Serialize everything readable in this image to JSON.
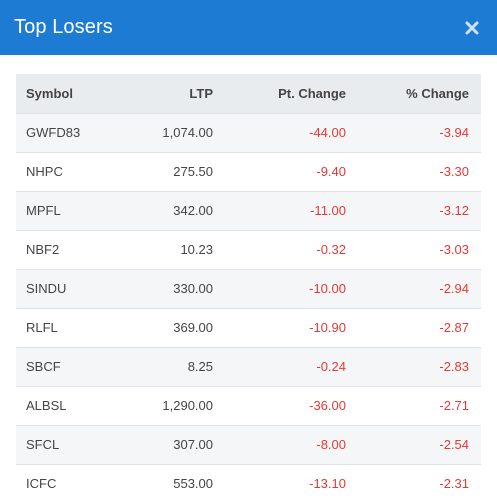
{
  "header": {
    "title": "Top Losers"
  },
  "colors": {
    "header_bg": "#1e7bd3",
    "negative": "#e53935"
  },
  "table": {
    "columns": [
      "Symbol",
      "LTP",
      "Pt. Change",
      "% Change"
    ],
    "rows": [
      {
        "symbol": "GWFD83",
        "ltp": "1,074.00",
        "pt_change": "-44.00",
        "pct_change": "-3.94"
      },
      {
        "symbol": "NHPC",
        "ltp": "275.50",
        "pt_change": "-9.40",
        "pct_change": "-3.30"
      },
      {
        "symbol": "MPFL",
        "ltp": "342.00",
        "pt_change": "-11.00",
        "pct_change": "-3.12"
      },
      {
        "symbol": "NBF2",
        "ltp": "10.23",
        "pt_change": "-0.32",
        "pct_change": "-3.03"
      },
      {
        "symbol": "SINDU",
        "ltp": "330.00",
        "pt_change": "-10.00",
        "pct_change": "-2.94"
      },
      {
        "symbol": "RLFL",
        "ltp": "369.00",
        "pt_change": "-10.90",
        "pct_change": "-2.87"
      },
      {
        "symbol": "SBCF",
        "ltp": "8.25",
        "pt_change": "-0.24",
        "pct_change": "-2.83"
      },
      {
        "symbol": "ALBSL",
        "ltp": "1,290.00",
        "pt_change": "-36.00",
        "pct_change": "-2.71"
      },
      {
        "symbol": "SFCL",
        "ltp": "307.00",
        "pt_change": "-8.00",
        "pct_change": "-2.54"
      },
      {
        "symbol": "ICFC",
        "ltp": "553.00",
        "pt_change": "-13.10",
        "pct_change": "-2.31"
      }
    ]
  }
}
